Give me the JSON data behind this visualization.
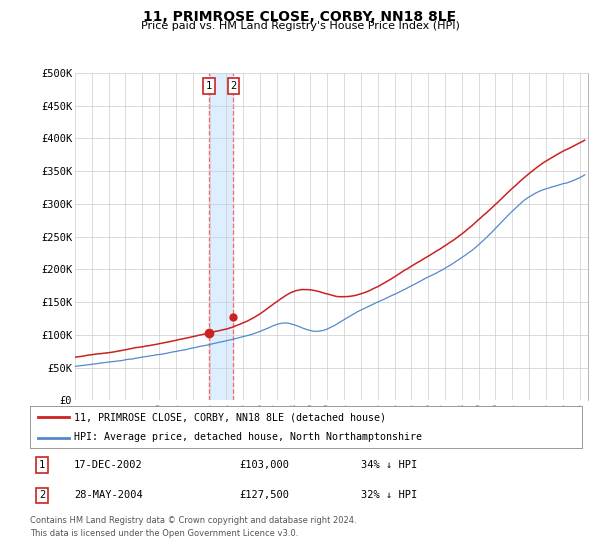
{
  "title": "11, PRIMROSE CLOSE, CORBY, NN18 8LE",
  "subtitle": "Price paid vs. HM Land Registry's House Price Index (HPI)",
  "ylabel_ticks": [
    "£0",
    "£50K",
    "£100K",
    "£150K",
    "£200K",
    "£250K",
    "£300K",
    "£350K",
    "£400K",
    "£450K",
    "£500K"
  ],
  "ytick_values": [
    0,
    50000,
    100000,
    150000,
    200000,
    250000,
    300000,
    350000,
    400000,
    450000,
    500000
  ],
  "ylim": [
    0,
    500000
  ],
  "xlim_start": 1995.0,
  "xlim_end": 2025.5,
  "hpi_color": "#5588cc",
  "price_color": "#cc2222",
  "sale1_date": 2002.96,
  "sale1_price": 103000,
  "sale2_date": 2004.41,
  "sale2_price": 127500,
  "sale1_date_str": "17-DEC-2002",
  "sale2_date_str": "28-MAY-2004",
  "sale1_price_str": "£103,000",
  "sale2_price_str": "£127,500",
  "sale1_pct": "34% ↓ HPI",
  "sale2_pct": "32% ↓ HPI",
  "legend_line1": "11, PRIMROSE CLOSE, CORBY, NN18 8LE (detached house)",
  "legend_line2": "HPI: Average price, detached house, North Northamptonshire",
  "footer1": "Contains HM Land Registry data © Crown copyright and database right 2024.",
  "footer2": "This data is licensed under the Open Government Licence v3.0.",
  "box_color": "#cc2222",
  "background_color": "#ffffff",
  "grid_color": "#cccccc",
  "span_color": "#ddeeff"
}
